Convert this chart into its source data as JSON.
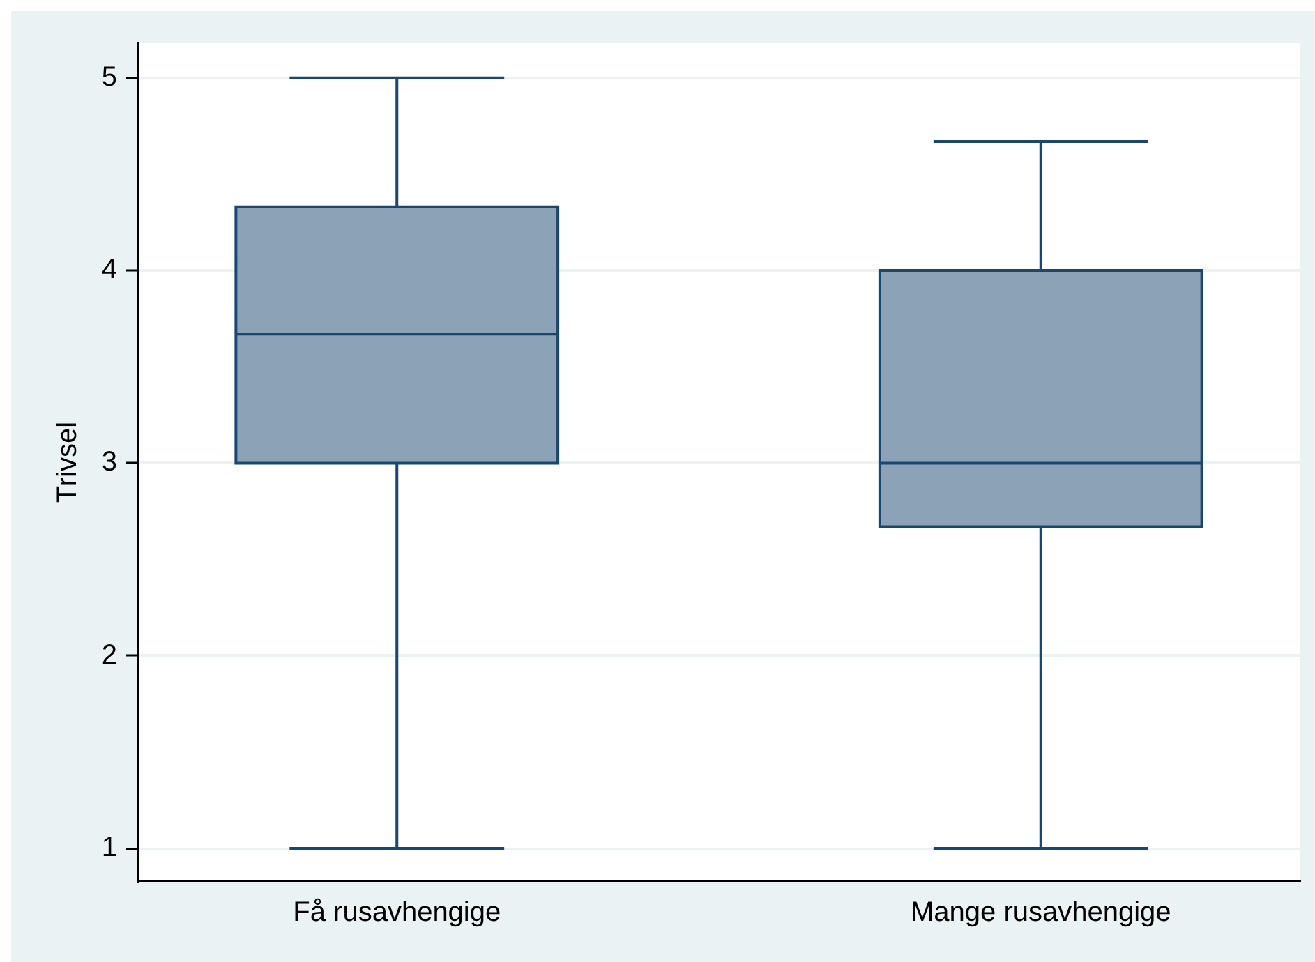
{
  "chart_data": {
    "type": "box",
    "categories": [
      "Få rusavhengige",
      "Mange rusavhengige"
    ],
    "ylabel": "Trivsel",
    "ylim": [
      0.83,
      5.18
    ],
    "yticks": [
      1,
      2,
      3,
      4,
      5
    ],
    "grid": "y",
    "color": "#8ca3b7",
    "boxes": [
      {
        "low": 1,
        "q1": 3,
        "median": 3.67,
        "q3": 4.33,
        "high": 5
      },
      {
        "low": 1,
        "q1": 2.67,
        "median": 3,
        "q3": 4,
        "high": 4.67
      }
    ]
  }
}
